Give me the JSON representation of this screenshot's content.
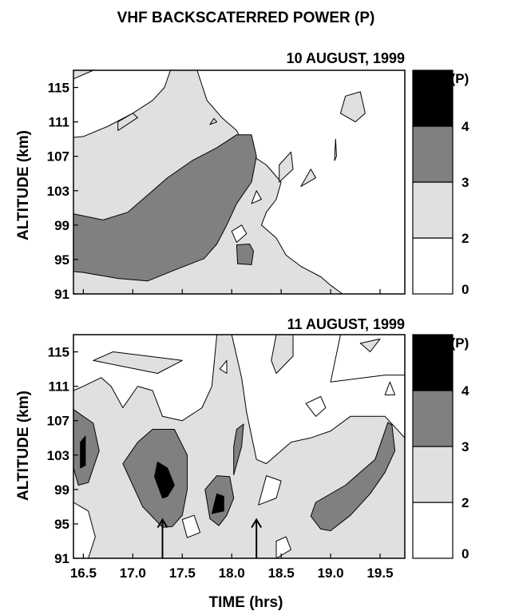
{
  "figure": {
    "title": "VHF BACKSCATERRED POWER (P)",
    "xlabel": "TIME (hrs)"
  },
  "colors": {
    "band_0_2": "#ffffff",
    "band_2_3": "#e0e0e0",
    "band_3_4": "#808080",
    "band_4_plus": "#000000",
    "contour_line": "#000000"
  },
  "chart_data": [
    {
      "type": "heatmap",
      "subtitle": "10 AUGUST, 1999",
      "ylabel": "ALTITUDE (km)",
      "xlim": [
        16.4,
        19.75
      ],
      "ylim": [
        91,
        117
      ],
      "x_ticks": [
        16.5,
        17.0,
        17.5,
        18.0,
        18.5,
        19.0,
        19.5
      ],
      "y_ticks": [
        "91",
        "95",
        "99",
        "103",
        "107",
        "111",
        "115"
      ],
      "colorbar": {
        "title": "Log. (P)",
        "levels": [
          "0",
          "2",
          "3",
          "4"
        ]
      },
      "regions": [
        {
          "level": "2-3",
          "points": [
            [
              16.4,
              91
            ],
            [
              19.12,
              91
            ],
            [
              19.0,
              92
            ],
            [
              18.9,
              93
            ],
            [
              18.7,
              94.2
            ],
            [
              18.55,
              95.5
            ],
            [
              18.45,
              97.5
            ],
            [
              18.3,
              99
            ],
            [
              18.35,
              100.5
            ],
            [
              18.45,
              102
            ],
            [
              18.5,
              104
            ],
            [
              18.35,
              106
            ],
            [
              18.15,
              107.5
            ],
            [
              18.05,
              110
            ],
            [
              17.9,
              111.5
            ],
            [
              17.75,
              113.5
            ],
            [
              17.65,
              117
            ],
            [
              17.38,
              117
            ],
            [
              17.32,
              115
            ],
            [
              17.2,
              113.5
            ],
            [
              17.0,
              112
            ],
            [
              16.75,
              110.5
            ],
            [
              16.5,
              109.3
            ],
            [
              16.4,
              109.2
            ]
          ]
        },
        {
          "level": "3-4",
          "points": [
            [
              16.4,
              100.3
            ],
            [
              16.7,
              99.6
            ],
            [
              16.95,
              100.5
            ],
            [
              17.15,
              102.5
            ],
            [
              17.35,
              104.5
            ],
            [
              17.6,
              106.5
            ],
            [
              17.85,
              108
            ],
            [
              18.05,
              109.5
            ],
            [
              18.2,
              109.5
            ],
            [
              18.25,
              107
            ],
            [
              18.2,
              104
            ],
            [
              18.05,
              101.5
            ],
            [
              17.95,
              99
            ],
            [
              17.85,
              96.8
            ],
            [
              17.72,
              95.1
            ],
            [
              17.45,
              93.9
            ],
            [
              17.15,
              92.5
            ],
            [
              16.85,
              92.8
            ],
            [
              16.5,
              93.5
            ],
            [
              16.4,
              93.6
            ]
          ]
        },
        {
          "level": "3-4",
          "points": [
            [
              18.06,
              94.5
            ],
            [
              18.2,
              94.4
            ],
            [
              18.22,
              96
            ],
            [
              18.18,
              96.8
            ],
            [
              18.05,
              96.7
            ]
          ]
        },
        {
          "level": "0-2",
          "points": [
            [
              18.05,
              97
            ],
            [
              18.15,
              98
            ],
            [
              18.1,
              99
            ],
            [
              18.0,
              98.3
            ]
          ]
        },
        {
          "level": "0-2",
          "points": [
            [
              18.2,
              101.5
            ],
            [
              18.3,
              102
            ],
            [
              18.25,
              103
            ]
          ]
        },
        {
          "level": "2-3",
          "points": [
            [
              19.1,
              112
            ],
            [
              19.25,
              111
            ],
            [
              19.35,
              112
            ],
            [
              19.3,
              114.5
            ],
            [
              19.15,
              114
            ]
          ]
        },
        {
          "level": "2-3",
          "points": [
            [
              18.7,
              103.5
            ],
            [
              18.85,
              104.5
            ],
            [
              18.8,
              105.5
            ]
          ]
        },
        {
          "level": "2-3",
          "points": [
            [
              18.48,
              104
            ],
            [
              18.62,
              105.5
            ],
            [
              18.6,
              107.5
            ],
            [
              18.48,
              106
            ]
          ]
        },
        {
          "level": "2-3",
          "points": [
            [
              17.78,
              110.7
            ],
            [
              17.85,
              111
            ],
            [
              17.82,
              111.4
            ]
          ]
        },
        {
          "level": "2-3",
          "points": [
            [
              16.85,
              110
            ],
            [
              17.05,
              111.5
            ],
            [
              17.0,
              112
            ],
            [
              16.85,
              111
            ]
          ]
        },
        {
          "level": "2-3",
          "points": [
            [
              19.04,
              106.5
            ],
            [
              19.05,
              109
            ],
            [
              19.06,
              107
            ]
          ]
        },
        {
          "level": "2-3",
          "points": [
            [
              16.4,
              116
            ],
            [
              16.6,
              117
            ],
            [
              16.4,
              117
            ]
          ]
        }
      ]
    },
    {
      "type": "heatmap",
      "subtitle": "11 AUGUST, 1999",
      "ylabel": "ALTITUDE (km)",
      "xlim": [
        16.4,
        19.75
      ],
      "ylim": [
        91,
        117
      ],
      "x_ticks": [
        16.5,
        17.0,
        17.5,
        18.0,
        18.5,
        19.0,
        19.5
      ],
      "x_tick_labels": [
        "16.5",
        "17.0",
        "17.5",
        "18.0",
        "18.5",
        "19.0",
        "19.5"
      ],
      "y_ticks": [
        "91",
        "95",
        "99",
        "103",
        "107",
        "111",
        "115"
      ],
      "colorbar": {
        "title": "Log. (P)",
        "levels": [
          "0",
          "2",
          "3",
          "4"
        ]
      },
      "arrows": [
        17.3,
        18.25
      ],
      "regions": [
        {
          "level": "2-3",
          "points": [
            [
              16.4,
              91
            ],
            [
              19.75,
              91
            ],
            [
              19.75,
              105
            ],
            [
              19.55,
              107.5
            ],
            [
              19.2,
              107.5
            ],
            [
              19.0,
              105.8
            ],
            [
              18.8,
              105
            ],
            [
              18.6,
              104.5
            ],
            [
              18.45,
              103
            ],
            [
              18.35,
              102
            ],
            [
              18.25,
              102.5
            ],
            [
              18.15,
              108
            ],
            [
              18.1,
              112
            ],
            [
              18.0,
              117
            ],
            [
              17.85,
              117
            ],
            [
              17.8,
              111
            ],
            [
              17.7,
              108.5
            ],
            [
              17.5,
              107
            ],
            [
              17.3,
              107.5
            ],
            [
              17.2,
              110.5
            ],
            [
              17.05,
              111
            ],
            [
              16.9,
              108.5
            ],
            [
              16.78,
              111
            ],
            [
              16.68,
              112
            ],
            [
              16.5,
              111
            ],
            [
              16.4,
              110.5
            ]
          ]
        },
        {
          "level": "0-2",
          "points": [
            [
              16.4,
              91
            ],
            [
              16.55,
              91
            ],
            [
              16.62,
              93.5
            ],
            [
              16.55,
              96.5
            ],
            [
              16.4,
              97.5
            ]
          ]
        },
        {
          "level": "0-2",
          "points": [
            [
              17.55,
              93.4
            ],
            [
              17.68,
              94
            ],
            [
              17.62,
              96
            ],
            [
              17.5,
              95.5
            ]
          ]
        },
        {
          "level": "0-2",
          "points": [
            [
              18.27,
              97.2
            ],
            [
              18.45,
              98
            ],
            [
              18.5,
              100
            ],
            [
              18.35,
              100.6
            ]
          ]
        },
        {
          "level": "3-4",
          "points": [
            [
              16.4,
              101.5
            ],
            [
              16.45,
              99.5
            ],
            [
              16.55,
              99.8
            ],
            [
              16.66,
              103.5
            ],
            [
              16.6,
              106.7
            ],
            [
              16.4,
              108.3
            ]
          ]
        },
        {
          "level": "4+",
          "points": [
            [
              16.47,
              101.5
            ],
            [
              16.52,
              101.8
            ],
            [
              16.52,
              105.2
            ],
            [
              16.47,
              104.5
            ]
          ]
        },
        {
          "level": "3-4",
          "points": [
            [
              16.9,
              102
            ],
            [
              17.05,
              104.5
            ],
            [
              17.2,
              106
            ],
            [
              17.42,
              106
            ],
            [
              17.55,
              103
            ],
            [
              17.55,
              99
            ],
            [
              17.5,
              96
            ],
            [
              17.4,
              94.7
            ],
            [
              17.3,
              94.6
            ],
            [
              17.1,
              97
            ]
          ]
        },
        {
          "level": "4+",
          "points": [
            [
              17.22,
              100.5
            ],
            [
              17.25,
              102.2
            ],
            [
              17.35,
              101.5
            ],
            [
              17.42,
              99.5
            ],
            [
              17.35,
              98.2
            ],
            [
              17.3,
              98
            ]
          ]
        },
        {
          "level": "3-4",
          "points": [
            [
              17.73,
              99
            ],
            [
              17.85,
              100.6
            ],
            [
              17.98,
              100.5
            ],
            [
              18.02,
              98
            ],
            [
              17.95,
              96
            ],
            [
              17.87,
              94.8
            ],
            [
              17.78,
              95.6
            ]
          ]
        },
        {
          "level": "3-4",
          "points": [
            [
              18.02,
              100.7
            ],
            [
              18.1,
              104
            ],
            [
              18.12,
              106.6
            ],
            [
              18.05,
              106
            ],
            [
              18.02,
              104
            ]
          ]
        },
        {
          "level": "4+",
          "points": [
            [
              17.8,
              96.2
            ],
            [
              17.85,
              98.5
            ],
            [
              17.92,
              98.2
            ],
            [
              17.92,
              96.5
            ]
          ]
        },
        {
          "level": "3-4",
          "points": [
            [
              18.8,
              95.9
            ],
            [
              18.85,
              97.5
            ],
            [
              19.15,
              99.5
            ],
            [
              19.3,
              101
            ],
            [
              19.45,
              102.5
            ],
            [
              19.58,
              106.8
            ],
            [
              19.62,
              106.5
            ],
            [
              19.65,
              103.5
            ],
            [
              19.55,
              101
            ],
            [
              19.4,
              98.5
            ],
            [
              19.2,
              96
            ],
            [
              19.0,
              94.2
            ],
            [
              18.9,
              94.4
            ]
          ]
        },
        {
          "level": "0-2",
          "points": [
            [
              17.88,
              113
            ],
            [
              17.95,
              112.5
            ],
            [
              17.95,
              114
            ]
          ]
        },
        {
          "level": "0-2",
          "points": [
            [
              18.75,
              109
            ],
            [
              18.85,
              107.5
            ],
            [
              18.95,
              108.5
            ],
            [
              18.9,
              109.8
            ]
          ]
        },
        {
          "level": "0-2",
          "points": [
            [
              19.55,
              110
            ],
            [
              19.65,
              110
            ],
            [
              19.6,
              111.5
            ]
          ]
        },
        {
          "level": "0-2",
          "points": [
            [
              19.0,
              111.5
            ],
            [
              19.55,
              112.3
            ],
            [
              19.75,
              112.3
            ],
            [
              19.75,
              117
            ],
            [
              19.1,
              117
            ]
          ]
        },
        {
          "level": "0-2",
          "points": [
            [
              18.45,
              91
            ],
            [
              18.6,
              92
            ],
            [
              18.55,
              93.5
            ],
            [
              18.45,
              93
            ]
          ]
        },
        {
          "level": "2-3",
          "points": [
            [
              16.6,
              114
            ],
            [
              17.25,
              112.5
            ],
            [
              17.5,
              114
            ],
            [
              16.8,
              115
            ]
          ]
        },
        {
          "level": "2-3",
          "points": [
            [
              18.45,
              112.5
            ],
            [
              18.62,
              114.5
            ],
            [
              18.62,
              117
            ],
            [
              18.45,
              117
            ],
            [
              18.4,
              114
            ]
          ]
        },
        {
          "level": "2-3",
          "points": [
            [
              19.3,
              116
            ],
            [
              19.4,
              115
            ],
            [
              19.5,
              116.5
            ]
          ]
        }
      ]
    }
  ]
}
